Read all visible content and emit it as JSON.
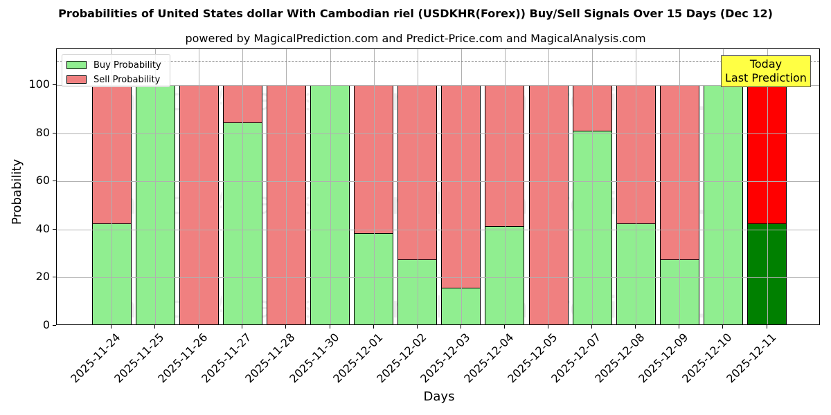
{
  "title": "Probabilities of United States dollar With Cambodian riel (USDKHR(Forex)) Buy/Sell Signals Over 15 Days (Dec 12)",
  "subtitle": "powered by MagicalPrediction.com and Predict-Price.com and MagicalAnalysis.com",
  "legend": {
    "buy_label": "Buy Probability",
    "sell_label": "Sell Probability"
  },
  "annotation": {
    "line1": "Today",
    "line2": "Last Prediction"
  },
  "axes": {
    "xlabel": "Days",
    "ylabel": "Probability",
    "yticks": [
      "0",
      "20",
      "40",
      "60",
      "80",
      "100"
    ]
  },
  "watermarks": [
    "MagicalAnalysis.com",
    "MagicalPrediction.com"
  ],
  "colors": {
    "buy": "#90ee90",
    "sell": "#f08080",
    "today_buy": "#008000",
    "today_sell": "#ff0000",
    "annotation_bg": "#ffff44",
    "threshold_line": "#808080"
  },
  "chart_data": {
    "type": "bar",
    "stacked": true,
    "title": "Probabilities of United States dollar With Cambodian riel (USDKHR(Forex)) Buy/Sell Signals Over 15 Days (Dec 12)",
    "subtitle": "powered by MagicalPrediction.com and Predict-Price.com and MagicalAnalysis.com",
    "xlabel": "Days",
    "ylabel": "Probability",
    "ylim": [
      0,
      115
    ],
    "yticks": [
      0,
      20,
      40,
      60,
      80,
      100
    ],
    "grid": true,
    "legend_position": "upper left",
    "threshold_line": 110,
    "categories": [
      "2025-11-24",
      "2025-11-25",
      "2025-11-26",
      "2025-11-27",
      "2025-11-28",
      "2025-11-30",
      "2025-12-01",
      "2025-12-02",
      "2025-12-03",
      "2025-12-04",
      "2025-12-05",
      "2025-12-07",
      "2025-12-08",
      "2025-12-09",
      "2025-12-10",
      "2025-12-11"
    ],
    "series": [
      {
        "name": "Buy Probability",
        "values": [
          42.5,
          100,
          0,
          84.4,
          0,
          100,
          38.4,
          27.7,
          15.9,
          41.3,
          0,
          81.2,
          42.5,
          27.7,
          100,
          42.5
        ]
      },
      {
        "name": "Sell Probability",
        "values": [
          57.5,
          0,
          100,
          15.6,
          100,
          0,
          61.6,
          72.3,
          84.1,
          58.7,
          100,
          18.8,
          57.5,
          72.3,
          0,
          57.5
        ]
      }
    ],
    "annotations": [
      {
        "text": "Today\nLast Prediction",
        "x": "2025-12-11"
      }
    ]
  }
}
